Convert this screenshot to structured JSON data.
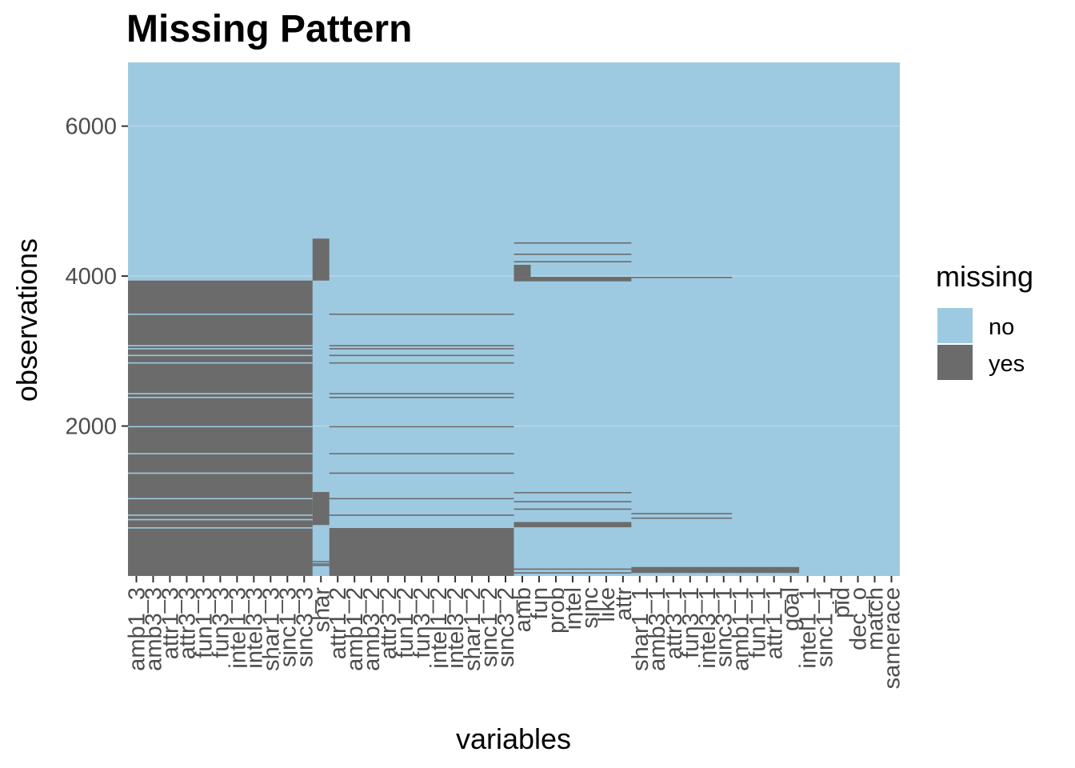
{
  "chart_data": {
    "type": "heatmap",
    "title": "Missing Pattern",
    "xlabel": "variables",
    "ylabel": "observations",
    "ylim": [
      0,
      6850
    ],
    "y_ticks": [
      2000,
      4000,
      6000
    ],
    "y_tick_labels": [
      "2000",
      "4000",
      "6000"
    ],
    "n_observations": 6850,
    "variables": [
      "amb1_3",
      "amb3_3",
      "attr1_3",
      "attr3_3",
      "fun1_3",
      "fun3_3",
      "intel1_3",
      "intel3_3",
      "shar1_3",
      "sinc1_3",
      "sinc3_3",
      "shar",
      "attr1_2",
      "amb1_2",
      "amb3_2",
      "attr3_2",
      "fun1_2",
      "fun3_2",
      "intel1_2",
      "intel3_2",
      "shar1_2",
      "sinc1_2",
      "sinc3_2",
      "amb",
      "fun",
      "prob",
      "intel",
      "sinc",
      "like",
      "attr",
      "shar1_1",
      "amb3_1",
      "attr3_1",
      "fun3_1",
      "intel3_1",
      "sinc3_1",
      "amb1_1",
      "fun1_1",
      "attr1_1",
      "goal",
      "intel1_1",
      "sinc1_1",
      "pid",
      "dec_o",
      "match",
      "samerace"
    ],
    "x_tick_labels": [
      "amb1_3",
      "amb3_3",
      "attr1_3",
      "attr3_3",
      "fun1_3",
      "fun3_3",
      "intel1_3",
      "intel3_3",
      "shar1_3",
      "sinc1_3",
      "sinc3_3",
      "shar",
      "attr1_2",
      "amb1_2",
      "amb3_2",
      "attr3_2",
      "fun1_2",
      "fun3_2",
      "intel1_2",
      "intel3_2",
      "shar1_2",
      "sinc1_2",
      "sinc3_2",
      "amb",
      "fun",
      "prob",
      "intel",
      "sinc",
      "like",
      "attr",
      "shar1_1",
      "amb3_1",
      "attr3_1",
      "fun3_1",
      "intel3_1",
      "sinc3_1",
      "amb1_1",
      "fun1_1",
      "attr1_1",
      "goal",
      "intel1_1",
      "sinc1_1",
      "pid",
      "dec_o",
      "match",
      "samerace"
    ],
    "legend": {
      "title": "missing",
      "position": "right",
      "entries": [
        {
          "label": "no",
          "color": "#9ecae1"
        },
        {
          "label": "yes",
          "color": "#6b6b6b"
        }
      ]
    },
    "missing_blocks": [
      {
        "variables": "amb1_3 … sinc3_3",
        "columns": [
          0,
          10
        ],
        "observations": [
          1,
          3940
        ]
      },
      {
        "variables": "shar",
        "columns": [
          11,
          11
        ],
        "observations": [
          680,
          1120
        ]
      },
      {
        "variables": "shar",
        "columns": [
          11,
          11
        ],
        "observations": [
          3940,
          4500
        ]
      },
      {
        "variables": "attr1_2 … sinc3_2",
        "columns": [
          12,
          22
        ],
        "observations": [
          1,
          640
        ]
      },
      {
        "variables": "amb … attr",
        "columns": [
          23,
          29
        ],
        "observations": [
          650,
          720
        ]
      },
      {
        "variables": "amb … attr",
        "columns": [
          23,
          29
        ],
        "observations": [
          3930,
          3990
        ]
      },
      {
        "variables": "amb",
        "columns": [
          23,
          23
        ],
        "observations": [
          3990,
          4150
        ]
      },
      {
        "variables": "shar1_1 … goal",
        "columns": [
          30,
          39
        ],
        "observations": [
          40,
          120
        ]
      }
    ]
  }
}
